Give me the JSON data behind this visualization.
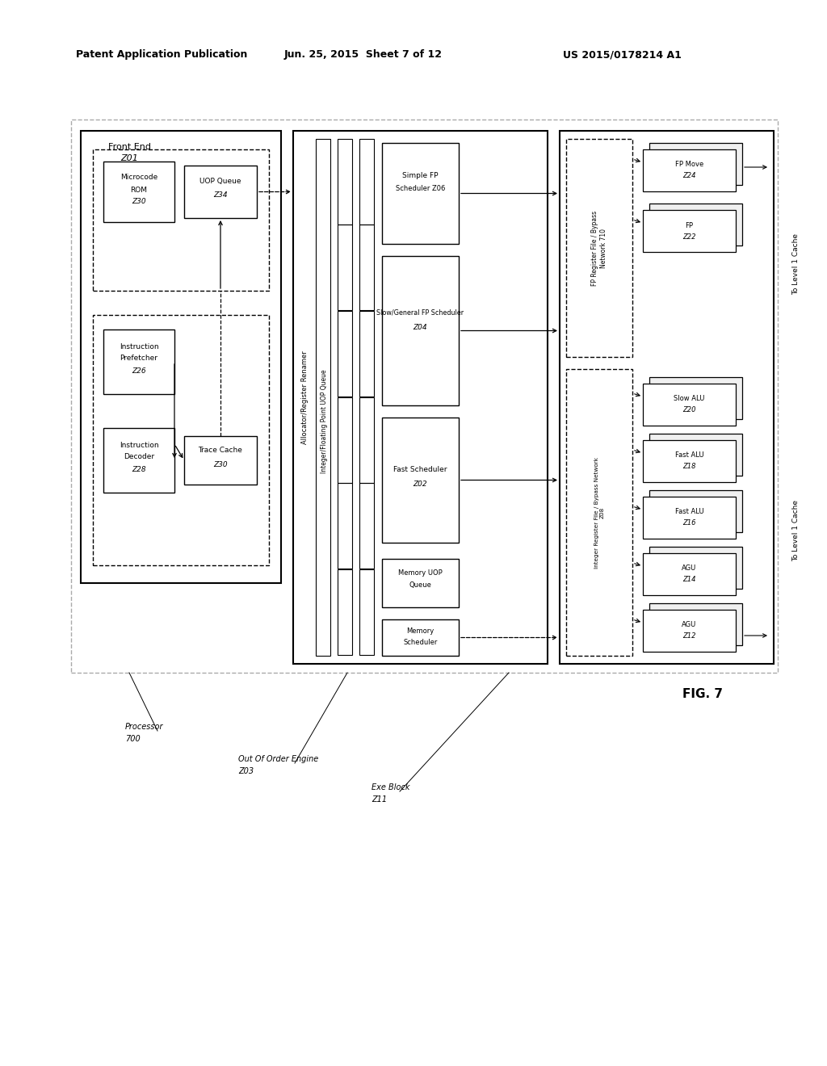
{
  "bg_color": "#ffffff",
  "header_left": "Patent Application Publication",
  "header_center": "Jun. 25, 2015  Sheet 7 of 12",
  "header_right": "US 2015/0178214 A1",
  "fig_label": "FIG. 7"
}
